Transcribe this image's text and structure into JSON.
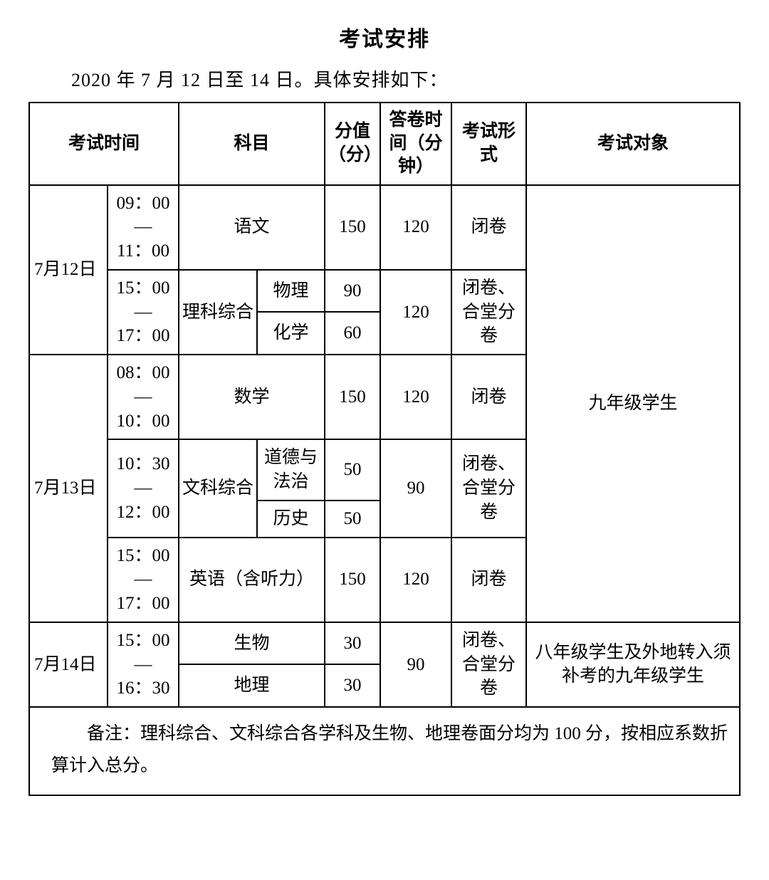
{
  "title": "考试安排",
  "subtitle": "2020 年 7 月 12 日至 14 日。具体安排如下：",
  "headers": {
    "exam_time": "考试时间",
    "subject": "科目",
    "score": "分值（分）",
    "duration": "答卷时间（分钟）",
    "form": "考试形式",
    "target": "考试对象"
  },
  "dates": {
    "d1": "7月12日",
    "d2": "7月13日",
    "d3": "7月14日"
  },
  "times": {
    "d1s1": "09：00\n—\n11：00",
    "d1s2": "15：00\n—\n17：00",
    "d2s1": "08：00\n—\n10：00",
    "d2s2": "10：30\n—\n12：00",
    "d2s3": "15：00\n—\n17：00",
    "d3s1": "15：00\n—\n16：30"
  },
  "subjects": {
    "chinese": "语文",
    "sci_comp": "理科综合",
    "physics": "物理",
    "chemistry": "化学",
    "math": "数学",
    "arts_comp": "文科综合",
    "morals": "道德与法治",
    "history": "历史",
    "english": "英语（含听力）",
    "biology": "生物",
    "geography": "地理"
  },
  "scores": {
    "chinese": "150",
    "physics": "90",
    "chemistry": "60",
    "math": "150",
    "morals": "50",
    "history": "50",
    "english": "150",
    "biology": "30",
    "geography": "30"
  },
  "durations": {
    "chinese": "120",
    "sci": "120",
    "math": "120",
    "arts": "90",
    "english": "120",
    "biogeo": "90"
  },
  "forms": {
    "closed": "闭卷",
    "closed_split": "闭卷、合堂分卷"
  },
  "targets": {
    "g9": "九年级学生",
    "g8plus": "八年级学生及外地转入须补考的九年级学生"
  },
  "note": "备注：理科综合、文科综合各学科及生物、地理卷面分均为 100 分，按相应系数折算计入总分。"
}
